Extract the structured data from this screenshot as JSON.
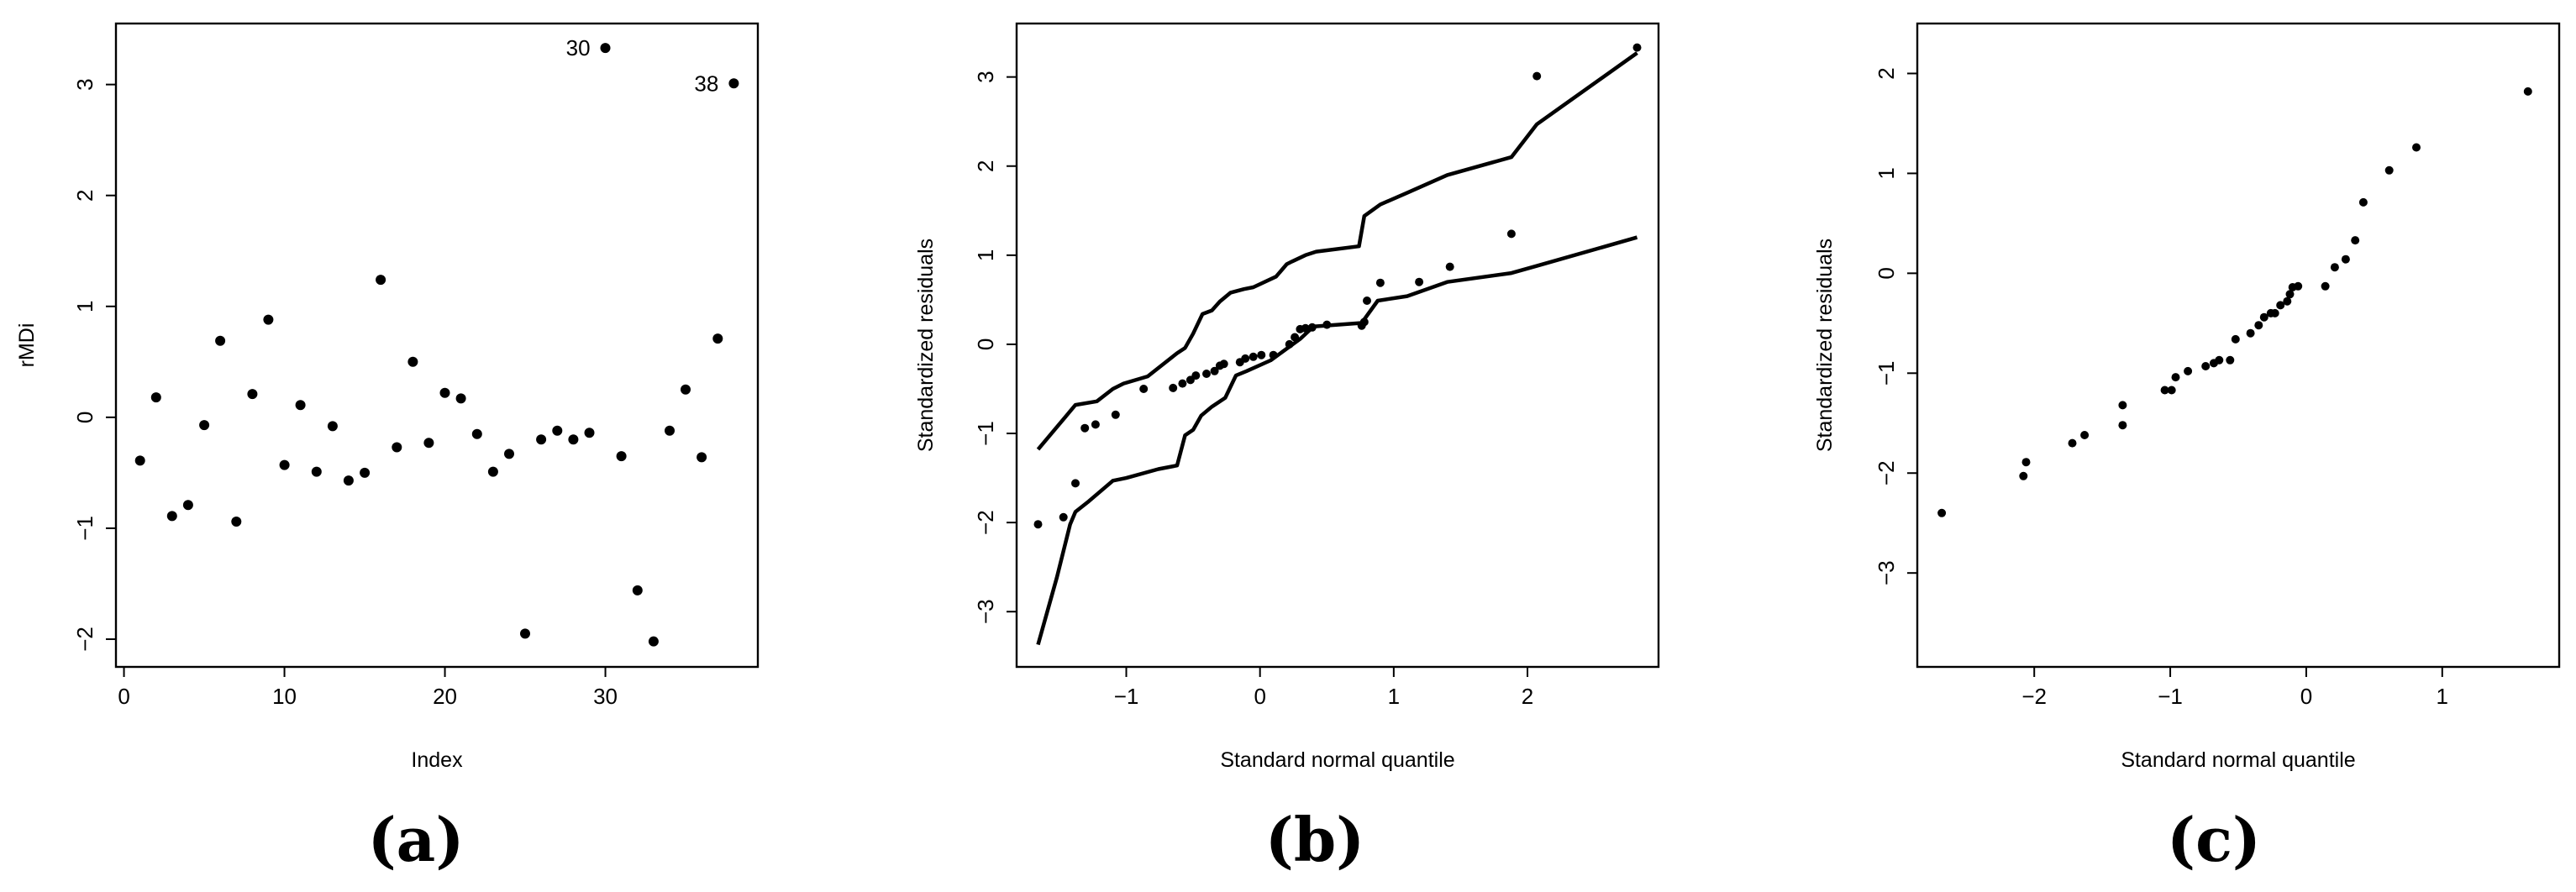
{
  "chart_data": [
    {
      "type": "scatter",
      "panel_label": "(a)",
      "xlabel": "Index",
      "ylabel": "rMDi",
      "xlim": [
        -0.5,
        39.5
      ],
      "ylim": [
        -2.25,
        3.55
      ],
      "xticks": [
        0,
        10,
        20,
        30
      ],
      "yticks": [
        -2,
        -1,
        0,
        1,
        2,
        3
      ],
      "x": [
        1,
        2,
        3,
        4,
        5,
        6,
        7,
        8,
        9,
        10,
        11,
        12,
        13,
        14,
        15,
        16,
        17,
        18,
        19,
        20,
        21,
        22,
        23,
        24,
        25,
        26,
        27,
        28,
        29,
        30,
        31,
        32,
        33,
        34,
        35,
        36,
        37,
        38
      ],
      "y": [
        -0.39,
        0.18,
        -0.89,
        -0.79,
        -0.07,
        0.69,
        -0.94,
        0.21,
        0.88,
        -0.43,
        0.11,
        -0.49,
        -0.08,
        -0.57,
        -0.5,
        1.24,
        -0.27,
        0.5,
        -0.23,
        0.22,
        0.17,
        -0.15,
        -0.49,
        -0.33,
        -1.95,
        -0.2,
        -0.12,
        -0.2,
        -0.14,
        3.33,
        -0.35,
        -1.56,
        -2.02,
        -0.12,
        0.25,
        -0.36,
        0.71,
        3.01
      ],
      "annotations": [
        {
          "x": 30,
          "y": 3.33,
          "text": "30"
        },
        {
          "x": 38,
          "y": 3.01,
          "text": "38"
        }
      ]
    },
    {
      "type": "scatter",
      "panel_label": "(b)",
      "xlabel": "Standard normal quantile",
      "ylabel": "Standardized residuals",
      "xlim": [
        -1.82,
        2.98
      ],
      "ylim": [
        -3.62,
        3.6
      ],
      "xticks": [
        -1,
        0,
        1,
        2
      ],
      "yticks": [
        -3,
        -2,
        -1,
        0,
        1,
        2,
        3
      ],
      "x": [
        -1.66,
        -1.47,
        -1.38,
        -1.31,
        -1.23,
        -1.08,
        -0.87,
        -0.65,
        -0.58,
        -0.52,
        -0.48,
        -0.4,
        -0.34,
        -0.3,
        -0.27,
        -0.15,
        -0.11,
        -0.05,
        0.01,
        0.1,
        0.22,
        0.26,
        0.3,
        0.34,
        0.39,
        0.5,
        0.76,
        0.78,
        0.8,
        0.9,
        1.19,
        1.42,
        1.88,
        2.07,
        2.82
      ],
      "y": [
        -2.02,
        -1.94,
        -1.56,
        -0.94,
        -0.9,
        -0.79,
        -0.5,
        -0.49,
        -0.44,
        -0.4,
        -0.35,
        -0.33,
        -0.3,
        -0.24,
        -0.22,
        -0.2,
        -0.16,
        -0.14,
        -0.12,
        -0.12,
        0.0,
        0.08,
        0.17,
        0.18,
        0.19,
        0.22,
        0.21,
        0.25,
        0.49,
        0.69,
        0.7,
        0.87,
        1.24,
        3.01,
        3.33
      ],
      "envelope_upper": {
        "x": [
          -1.66,
          -1.38,
          -1.22,
          -1.1,
          -1.02,
          -0.84,
          -0.62,
          -0.56,
          -0.5,
          -0.43,
          -0.36,
          -0.3,
          -0.22,
          -0.12,
          -0.05,
          0.12,
          0.2,
          0.24,
          0.34,
          0.42,
          0.74,
          0.78,
          0.9,
          1.1,
          1.4,
          1.88,
          2.07,
          2.82
        ],
        "y": [
          -1.18,
          -0.68,
          -0.64,
          -0.5,
          -0.44,
          -0.36,
          -0.1,
          -0.04,
          0.12,
          0.34,
          0.38,
          0.48,
          0.58,
          0.62,
          0.64,
          0.76,
          0.9,
          0.93,
          1.0,
          1.04,
          1.1,
          1.44,
          1.57,
          1.7,
          1.9,
          2.1,
          2.47,
          3.27
        ]
      },
      "envelope_lower": {
        "x": [
          -1.66,
          -1.52,
          -1.42,
          -1.38,
          -1.28,
          -1.1,
          -1.0,
          -0.76,
          -0.62,
          -0.56,
          -0.5,
          -0.44,
          -0.36,
          -0.26,
          -0.18,
          -0.1,
          0.08,
          0.3,
          0.4,
          0.76,
          0.88,
          1.1,
          1.4,
          1.88,
          2.07,
          2.82
        ],
        "y": [
          -3.37,
          -2.62,
          -2.02,
          -1.88,
          -1.76,
          -1.53,
          -1.5,
          -1.4,
          -1.36,
          -1.02,
          -0.96,
          -0.8,
          -0.7,
          -0.6,
          -0.35,
          -0.3,
          -0.18,
          0.06,
          0.2,
          0.24,
          0.49,
          0.54,
          0.7,
          0.8,
          0.88,
          1.2
        ]
      }
    },
    {
      "type": "scatter",
      "panel_label": "(c)",
      "xlabel": "Standard normal quantile",
      "ylabel": "Standardized residuals",
      "xlim": [
        -2.86,
        1.86
      ],
      "ylim": [
        -3.94,
        2.5
      ],
      "xticks": [
        -2,
        -1,
        0,
        1
      ],
      "yticks": [
        -3,
        -2,
        -1,
        0,
        1,
        2
      ],
      "x": [
        -2.68,
        -2.08,
        -2.06,
        -1.72,
        -1.63,
        -1.35,
        -1.35,
        -1.04,
        -0.99,
        -0.96,
        -0.87,
        -0.74,
        -0.68,
        -0.64,
        -0.56,
        -0.52,
        -0.41,
        -0.35,
        -0.31,
        -0.26,
        -0.23,
        -0.19,
        -0.14,
        -0.12,
        -0.1,
        -0.06,
        0.14,
        0.21,
        0.29,
        0.36,
        0.42,
        0.61,
        0.81,
        1.63
      ],
      "y": [
        -2.4,
        -2.03,
        -1.89,
        -1.7,
        -1.62,
        -1.52,
        -1.32,
        -1.17,
        -1.17,
        -1.04,
        -0.98,
        -0.93,
        -0.9,
        -0.87,
        -0.87,
        -0.66,
        -0.6,
        -0.52,
        -0.44,
        -0.4,
        -0.4,
        -0.32,
        -0.28,
        -0.21,
        -0.14,
        -0.13,
        -0.13,
        0.06,
        0.14,
        0.33,
        0.71,
        1.03,
        1.26,
        1.82
      ]
    }
  ]
}
